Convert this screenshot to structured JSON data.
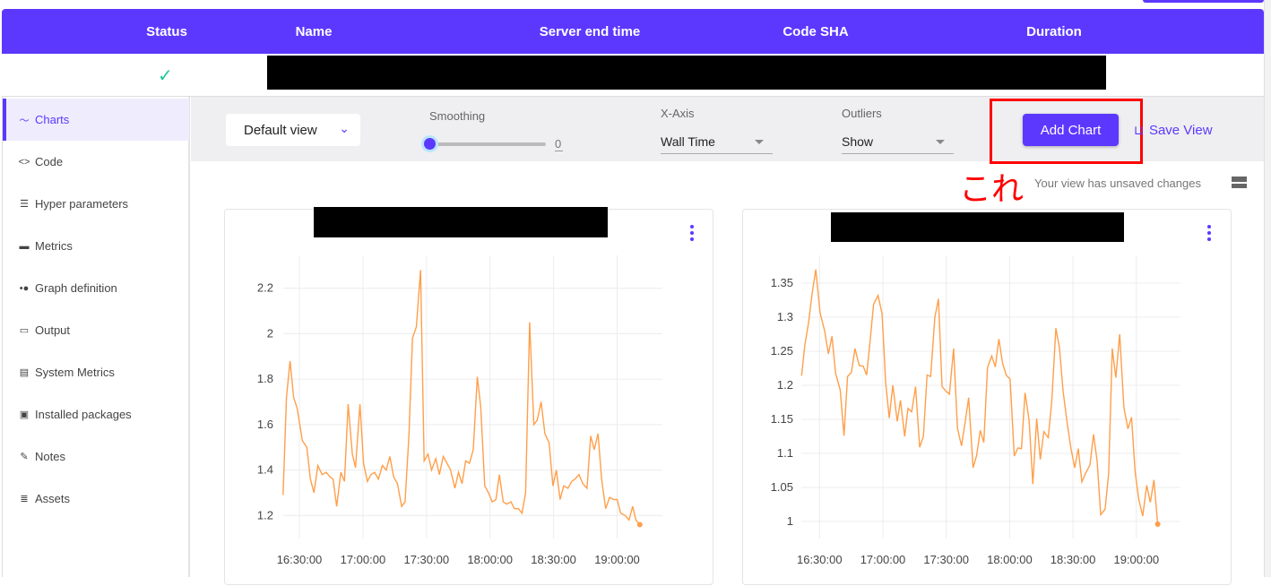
{
  "header": {
    "columns": [
      "Status",
      "Name",
      "Server end time",
      "Code SHA",
      "Duration"
    ]
  },
  "row": {
    "status_icon": "check-icon",
    "status_color": "#1ec79a"
  },
  "sidebar": {
    "items": [
      {
        "label": "Charts",
        "icon": "chart-line-icon",
        "active": true
      },
      {
        "label": "Code",
        "icon": "code-icon"
      },
      {
        "label": "Hyper parameters",
        "icon": "list-icon"
      },
      {
        "label": "Metrics",
        "icon": "metrics-icon"
      },
      {
        "label": "Graph definition",
        "icon": "graph-icon"
      },
      {
        "label": "Output",
        "icon": "laptop-icon"
      },
      {
        "label": "System Metrics",
        "icon": "server-icon"
      },
      {
        "label": "Installed packages",
        "icon": "briefcase-icon"
      },
      {
        "label": "Notes",
        "icon": "pencil-icon"
      },
      {
        "label": "Assets",
        "icon": "assets-icon"
      }
    ]
  },
  "toolbar": {
    "view": "Default view",
    "smoothing_label": "Smoothing",
    "smoothing_value": "0",
    "xaxis_label": "X-Axis",
    "xaxis_value": "Wall Time",
    "outliers_label": "Outliers",
    "outliers_value": "Show",
    "add_chart": "Add Chart",
    "save_view": "Save View",
    "unsaved": "Your view has unsaved changes",
    "annotation": "これ"
  },
  "colors": {
    "accent": "#5c38ff",
    "line": "#ff9f4a",
    "annotation": "#ff0000"
  },
  "chart_data": [
    {
      "type": "line",
      "title": "",
      "ylim": [
        1.1,
        2.34
      ],
      "grid": true,
      "y_ticks": [
        "1.2",
        "1.4",
        "1.6",
        "1.8",
        "2",
        "2.2"
      ],
      "x_ticks": [
        "16:30:00",
        "17:00:00",
        "17:30:00",
        "18:00:00",
        "18:30:00",
        "19:00:00"
      ],
      "series": [
        {
          "x": [
            "16:22:18",
            "16:23:54",
            "16:25:36",
            "16:27:18",
            "16:29:00",
            "16:31:24",
            "16:33:30",
            "16:35:12",
            "16:36:54",
            "16:38:42",
            "16:40:42",
            "16:42:42",
            "16:44:24",
            "16:45:54",
            "16:47:36",
            "16:49:36",
            "16:51:18",
            "16:53:00",
            "16:55:00",
            "16:56:30",
            "16:58:36",
            "17:00:18",
            "17:02:06",
            "17:03:48",
            "17:05:30",
            "17:07:18",
            "17:09:12",
            "17:11:00",
            "17:12:42",
            "17:14:30",
            "17:16:18",
            "17:18:18",
            "17:19:54",
            "17:21:42",
            "17:23:24",
            "17:25:12",
            "17:27:12",
            "17:28:54",
            "17:30:42",
            "17:32:24",
            "17:34:24",
            "17:36:06",
            "17:37:54",
            "17:39:42",
            "17:41:24",
            "17:43:24",
            "17:45:06",
            "17:46:48",
            "17:48:30",
            "17:50:18",
            "17:52:06",
            "17:54:00",
            "17:55:36",
            "17:57:30",
            "17:59:18",
            "18:01:00",
            "18:02:48",
            "18:04:24",
            "18:06:12",
            "18:07:54",
            "18:09:54",
            "18:11:30",
            "18:13:24",
            "18:15:06",
            "18:16:48",
            "18:18:42",
            "18:20:42",
            "18:22:18",
            "18:24:06",
            "18:25:54",
            "18:27:54",
            "18:29:42",
            "18:31:18",
            "18:33:06",
            "18:34:48",
            "18:36:48",
            "18:38:30",
            "18:40:06",
            "18:42:00",
            "18:43:48",
            "18:45:48",
            "18:47:30",
            "18:49:12",
            "18:51:00",
            "18:52:42",
            "18:54:36",
            "18:56:30",
            "18:58:18",
            "19:00:00",
            "19:01:42",
            "19:03:48",
            "19:05:36",
            "19:07:18",
            "19:08:54",
            "19:10:42"
          ],
          "y": [
            1.29,
            1.72,
            1.88,
            1.72,
            1.67,
            1.53,
            1.5,
            1.36,
            1.3,
            1.42,
            1.38,
            1.39,
            1.37,
            1.36,
            1.24,
            1.39,
            1.35,
            1.69,
            1.47,
            1.41,
            1.69,
            1.43,
            1.35,
            1.38,
            1.39,
            1.36,
            1.42,
            1.4,
            1.46,
            1.37,
            1.34,
            1.24,
            1.26,
            1.55,
            1.98,
            2.03,
            2.28,
            1.44,
            1.47,
            1.4,
            1.45,
            1.38,
            1.46,
            1.43,
            1.4,
            1.32,
            1.39,
            1.34,
            1.44,
            1.43,
            1.49,
            1.81,
            1.68,
            1.33,
            1.3,
            1.26,
            1.27,
            1.38,
            1.26,
            1.25,
            1.26,
            1.23,
            1.23,
            1.21,
            1.3,
            2.05,
            1.6,
            1.62,
            1.7,
            1.56,
            1.52,
            1.33,
            1.4,
            1.27,
            1.33,
            1.32,
            1.35,
            1.36,
            1.38,
            1.34,
            1.32,
            1.55,
            1.49,
            1.56,
            1.36,
            1.23,
            1.28,
            1.27,
            1.27,
            1.21,
            1.2,
            1.18,
            1.24,
            1.18,
            1.16
          ]
        }
      ]
    },
    {
      "type": "line",
      "title": "",
      "ylim": [
        0.97,
        1.38
      ],
      "grid": true,
      "y_ticks": [
        "1",
        "1.05",
        "1.1",
        "1.15",
        "1.2",
        "1.25",
        "1.3",
        "1.35"
      ],
      "x_ticks": [
        "16:30:00",
        "17:00:00",
        "17:30:00",
        "18:00:00",
        "18:30:00",
        "19:00:00"
      ],
      "series": [
        {
          "x": [
            "16:21:30",
            "16:23:06",
            "16:24:48",
            "16:26:30",
            "16:28:12",
            "16:30:18",
            "16:32:24",
            "16:34:12",
            "16:35:54",
            "16:37:36",
            "16:39:48",
            "16:41:36",
            "16:43:18",
            "16:45:06",
            "16:46:48",
            "16:48:48",
            "16:50:42",
            "16:52:18",
            "16:54:00",
            "16:55:36",
            "16:57:42",
            "16:59:36",
            "17:01:18",
            "17:03:00",
            "17:04:42",
            "17:06:48",
            "17:08:18",
            "17:10:18",
            "17:11:54",
            "17:13:36",
            "17:15:30",
            "17:17:24",
            "17:19:12",
            "17:20:54",
            "17:22:36",
            "17:24:36",
            "17:26:18",
            "17:28:00",
            "17:29:42",
            "17:31:30",
            "17:33:30",
            "17:35:18",
            "17:37:12",
            "17:39:00",
            "17:40:36",
            "17:42:42",
            "17:44:24",
            "17:46:06",
            "17:47:48",
            "17:49:30",
            "17:51:30",
            "17:53:12",
            "17:54:54",
            "17:56:42",
            "17:58:24",
            "18:00:12",
            "18:02:12",
            "18:03:54",
            "18:05:36",
            "18:07:18",
            "18:09:12",
            "18:11:00",
            "18:12:48",
            "18:14:30",
            "18:16:12",
            "18:18:18",
            "18:20:00",
            "18:21:54",
            "18:23:36",
            "18:25:18",
            "18:27:06",
            "18:29:06",
            "18:30:48",
            "18:32:30",
            "18:34:12",
            "18:36:00",
            "18:38:00",
            "18:39:42",
            "18:41:24",
            "18:43:06",
            "18:45:12",
            "18:46:54",
            "18:48:36",
            "18:50:18",
            "18:52:06",
            "18:54:06",
            "18:56:00",
            "18:57:42",
            "18:59:24",
            "19:01:06",
            "19:03:00",
            "19:04:54",
            "19:06:36",
            "19:08:18",
            "19:10:06"
          ],
          "y": [
            1.214,
            1.26,
            1.291,
            1.335,
            1.37,
            1.306,
            1.28,
            1.246,
            1.272,
            1.218,
            1.193,
            1.126,
            1.213,
            1.219,
            1.254,
            1.229,
            1.228,
            1.215,
            1.267,
            1.319,
            1.332,
            1.305,
            1.204,
            1.152,
            1.2,
            1.147,
            1.178,
            1.125,
            1.166,
            1.161,
            1.198,
            1.109,
            1.125,
            1.215,
            1.213,
            1.3,
            1.327,
            1.198,
            1.192,
            1.187,
            1.254,
            1.137,
            1.111,
            1.147,
            1.182,
            1.079,
            1.097,
            1.134,
            1.116,
            1.226,
            1.243,
            1.227,
            1.268,
            1.232,
            1.215,
            1.209,
            1.096,
            1.108,
            1.107,
            1.189,
            1.149,
            1.055,
            1.151,
            1.091,
            1.132,
            1.123,
            1.178,
            1.284,
            1.255,
            1.192,
            1.147,
            1.106,
            1.079,
            1.107,
            1.058,
            1.071,
            1.083,
            1.128,
            1.089,
            1.01,
            1.018,
            1.071,
            1.254,
            1.211,
            1.275,
            1.167,
            1.136,
            1.153,
            1.073,
            1.033,
            1.008,
            1.053,
            1.028,
            1.061,
            0.996
          ]
        }
      ]
    }
  ]
}
